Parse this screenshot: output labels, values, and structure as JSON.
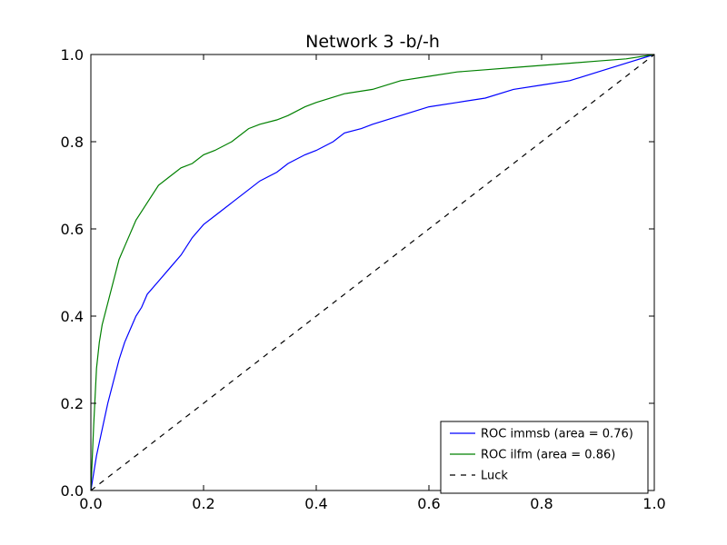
{
  "chart_data": {
    "type": "line",
    "title": "Network 3 -b/-h",
    "xlabel": "",
    "ylabel": "",
    "xlim": [
      0.0,
      1.0
    ],
    "ylim": [
      0.0,
      1.0
    ],
    "x_ticks": [
      "0.0",
      "0.2",
      "0.4",
      "0.6",
      "0.8",
      "1.0"
    ],
    "y_ticks": [
      "0.0",
      "0.2",
      "0.4",
      "0.6",
      "0.8",
      "1.0"
    ],
    "grid": false,
    "legend_position": "lower-right",
    "series": [
      {
        "name": "ROC immsb (area = 0.76)",
        "color": "#0000ff",
        "style": "solid",
        "x": [
          0.0,
          0.005,
          0.01,
          0.02,
          0.03,
          0.04,
          0.05,
          0.06,
          0.07,
          0.08,
          0.09,
          0.1,
          0.12,
          0.14,
          0.16,
          0.18,
          0.2,
          0.22,
          0.25,
          0.28,
          0.3,
          0.33,
          0.35,
          0.38,
          0.4,
          0.43,
          0.45,
          0.48,
          0.5,
          0.55,
          0.6,
          0.65,
          0.7,
          0.75,
          0.8,
          0.85,
          0.9,
          0.95,
          1.0
        ],
        "y": [
          0.0,
          0.04,
          0.08,
          0.14,
          0.2,
          0.25,
          0.3,
          0.34,
          0.37,
          0.4,
          0.42,
          0.45,
          0.48,
          0.51,
          0.54,
          0.58,
          0.61,
          0.63,
          0.66,
          0.69,
          0.71,
          0.73,
          0.75,
          0.77,
          0.78,
          0.8,
          0.82,
          0.83,
          0.84,
          0.86,
          0.88,
          0.89,
          0.9,
          0.92,
          0.93,
          0.94,
          0.96,
          0.98,
          1.0
        ]
      },
      {
        "name": "ROC ilfm (area = 0.86)",
        "color": "#008000",
        "style": "solid",
        "x": [
          0.0,
          0.005,
          0.01,
          0.015,
          0.02,
          0.03,
          0.04,
          0.05,
          0.06,
          0.07,
          0.08,
          0.09,
          0.1,
          0.12,
          0.14,
          0.16,
          0.18,
          0.2,
          0.22,
          0.25,
          0.28,
          0.3,
          0.33,
          0.35,
          0.38,
          0.4,
          0.45,
          0.5,
          0.55,
          0.6,
          0.65,
          0.7,
          0.75,
          0.8,
          0.85,
          0.9,
          0.95,
          1.0
        ],
        "y": [
          0.0,
          0.15,
          0.28,
          0.34,
          0.38,
          0.43,
          0.48,
          0.53,
          0.56,
          0.59,
          0.62,
          0.64,
          0.66,
          0.7,
          0.72,
          0.74,
          0.75,
          0.77,
          0.78,
          0.8,
          0.83,
          0.84,
          0.85,
          0.86,
          0.88,
          0.89,
          0.91,
          0.92,
          0.94,
          0.95,
          0.96,
          0.965,
          0.97,
          0.975,
          0.98,
          0.985,
          0.99,
          1.0
        ]
      },
      {
        "name": "Luck",
        "color": "#000000",
        "style": "dashed",
        "x": [
          0.0,
          1.0
        ],
        "y": [
          0.0,
          1.0
        ]
      }
    ]
  }
}
